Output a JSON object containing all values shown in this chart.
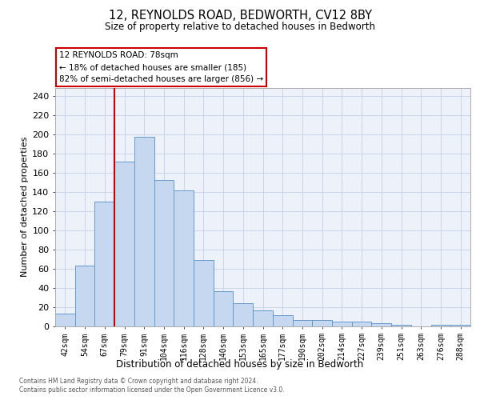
{
  "title1": "12, REYNOLDS ROAD, BEDWORTH, CV12 8BY",
  "title2": "Size of property relative to detached houses in Bedworth",
  "xlabel": "Distribution of detached houses by size in Bedworth",
  "ylabel": "Number of detached properties",
  "categories": [
    "42sqm",
    "54sqm",
    "67sqm",
    "79sqm",
    "91sqm",
    "104sqm",
    "116sqm",
    "128sqm",
    "140sqm",
    "153sqm",
    "165sqm",
    "177sqm",
    "190sqm",
    "202sqm",
    "214sqm",
    "227sqm",
    "239sqm",
    "251sqm",
    "263sqm",
    "276sqm",
    "288sqm"
  ],
  "values": [
    13,
    63,
    130,
    171,
    197,
    152,
    141,
    69,
    36,
    24,
    16,
    11,
    6,
    6,
    5,
    5,
    3,
    1,
    0,
    1,
    1
  ],
  "bar_color": "#c5d8f0",
  "bar_edge_color": "#6699cc",
  "grid_color": "#ccd6e8",
  "bg_color": "#edf2fa",
  "vline_color": "#cc0000",
  "vline_index": 3,
  "annotation_text": "12 REYNOLDS ROAD: 78sqm\n← 18% of detached houses are smaller (185)\n82% of semi-detached houses are larger (856) →",
  "annotation_box_edgecolor": "#cc0000",
  "ylim": [
    0,
    248
  ],
  "yticks": [
    0,
    20,
    40,
    60,
    80,
    100,
    120,
    140,
    160,
    180,
    200,
    220,
    240
  ],
  "footer1": "Contains HM Land Registry data © Crown copyright and database right 2024.",
  "footer2": "Contains public sector information licensed under the Open Government Licence v3.0."
}
